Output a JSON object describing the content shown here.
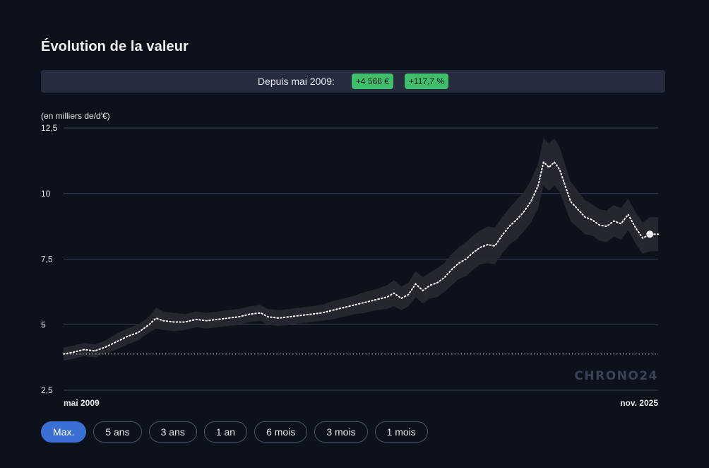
{
  "title": "Évolution de la valeur",
  "banner": {
    "label": "Depuis mai 2009:",
    "change_abs": "+4 568 €",
    "change_pct": "+117,7 %"
  },
  "controls": [
    {
      "label": "Max.",
      "active": true
    },
    {
      "label": "5 ans",
      "active": false
    },
    {
      "label": "3 ans",
      "active": false
    },
    {
      "label": "1 an",
      "active": false
    },
    {
      "label": "6 mois",
      "active": false
    },
    {
      "label": "3 mois",
      "active": false
    },
    {
      "label": "1 mois",
      "active": false
    }
  ],
  "watermark": "CHRONO24",
  "colors": {
    "background": "#0d111c",
    "band": "#262832",
    "line": "#ffffff",
    "grid": "#3a4154",
    "badge": "#3fbe6b",
    "active_button": "#3a6fd4"
  },
  "chart_data": {
    "type": "line",
    "unit_label": "(en milliers de/d'€)",
    "y_ticks": [
      "12,5",
      "10",
      "7,5",
      "5",
      "2,5"
    ],
    "y_tick_values": [
      12.5,
      10,
      7.5,
      5,
      2.5
    ],
    "ylim": [
      2.5,
      12.5
    ],
    "x_start_label": "mai 2009",
    "x_end_label": "nov. 2025",
    "xlim": [
      2009.33,
      2025.83
    ],
    "baseline": 3.88,
    "grid": true,
    "series": [
      {
        "values": [
          [
            2009.33,
            3.88
          ],
          [
            2009.6,
            3.95
          ],
          [
            2009.9,
            4.05
          ],
          [
            2010.2,
            4.0
          ],
          [
            2010.5,
            4.15
          ],
          [
            2010.8,
            4.35
          ],
          [
            2011.1,
            4.55
          ],
          [
            2011.4,
            4.7
          ],
          [
            2011.7,
            5.0
          ],
          [
            2011.9,
            5.25
          ],
          [
            2012.1,
            5.15
          ],
          [
            2012.4,
            5.1
          ],
          [
            2012.7,
            5.1
          ],
          [
            2013.0,
            5.2
          ],
          [
            2013.3,
            5.15
          ],
          [
            2013.6,
            5.2
          ],
          [
            2013.9,
            5.25
          ],
          [
            2014.2,
            5.3
          ],
          [
            2014.5,
            5.4
          ],
          [
            2014.8,
            5.45
          ],
          [
            2015.0,
            5.3
          ],
          [
            2015.3,
            5.25
          ],
          [
            2015.6,
            5.3
          ],
          [
            2015.9,
            5.35
          ],
          [
            2016.2,
            5.4
          ],
          [
            2016.5,
            5.45
          ],
          [
            2016.8,
            5.55
          ],
          [
            2017.1,
            5.65
          ],
          [
            2017.4,
            5.75
          ],
          [
            2017.7,
            5.85
          ],
          [
            2018.0,
            5.95
          ],
          [
            2018.3,
            6.05
          ],
          [
            2018.5,
            6.2
          ],
          [
            2018.7,
            6.0
          ],
          [
            2018.9,
            6.15
          ],
          [
            2019.1,
            6.55
          ],
          [
            2019.3,
            6.3
          ],
          [
            2019.5,
            6.5
          ],
          [
            2019.7,
            6.6
          ],
          [
            2019.9,
            6.8
          ],
          [
            2020.1,
            7.1
          ],
          [
            2020.3,
            7.35
          ],
          [
            2020.5,
            7.5
          ],
          [
            2020.7,
            7.75
          ],
          [
            2020.9,
            7.95
          ],
          [
            2021.1,
            8.05
          ],
          [
            2021.3,
            8.0
          ],
          [
            2021.5,
            8.4
          ],
          [
            2021.7,
            8.75
          ],
          [
            2021.9,
            9.0
          ],
          [
            2022.1,
            9.3
          ],
          [
            2022.3,
            9.7
          ],
          [
            2022.5,
            10.3
          ],
          [
            2022.65,
            11.2
          ],
          [
            2022.8,
            11.0
          ],
          [
            2022.95,
            11.2
          ],
          [
            2023.1,
            10.9
          ],
          [
            2023.25,
            10.3
          ],
          [
            2023.4,
            9.7
          ],
          [
            2023.6,
            9.4
          ],
          [
            2023.8,
            9.1
          ],
          [
            2024.0,
            9.0
          ],
          [
            2024.2,
            8.8
          ],
          [
            2024.4,
            8.75
          ],
          [
            2024.6,
            8.95
          ],
          [
            2024.8,
            8.85
          ],
          [
            2025.0,
            9.2
          ],
          [
            2025.2,
            8.7
          ],
          [
            2025.4,
            8.3
          ],
          [
            2025.6,
            8.45
          ],
          [
            2025.83,
            8.45
          ]
        ],
        "band_halfwidth": [
          0.25,
          0.25,
          0.25,
          0.25,
          0.25,
          0.3,
          0.3,
          0.3,
          0.3,
          0.4,
          0.35,
          0.35,
          0.3,
          0.3,
          0.3,
          0.3,
          0.3,
          0.3,
          0.3,
          0.3,
          0.3,
          0.3,
          0.3,
          0.3,
          0.3,
          0.3,
          0.35,
          0.35,
          0.35,
          0.4,
          0.4,
          0.45,
          0.5,
          0.45,
          0.45,
          0.5,
          0.5,
          0.5,
          0.55,
          0.55,
          0.6,
          0.6,
          0.65,
          0.65,
          0.65,
          0.7,
          0.7,
          0.7,
          0.7,
          0.75,
          0.75,
          0.8,
          0.85,
          0.9,
          0.9,
          0.9,
          0.85,
          0.8,
          0.75,
          0.7,
          0.65,
          0.6,
          0.6,
          0.6,
          0.6,
          0.6,
          0.6,
          0.6,
          0.6,
          0.65,
          0.65
        ]
      }
    ],
    "current_point": [
      2025.6,
      8.45
    ]
  }
}
